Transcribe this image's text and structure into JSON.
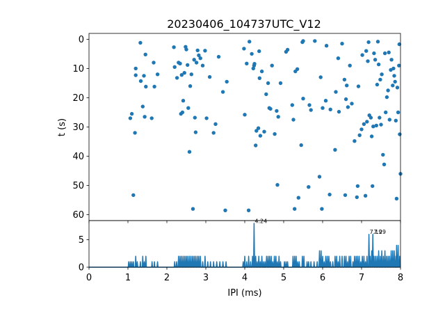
{
  "chart_data": [
    {
      "type": "scatter",
      "title": "20230406_104737UTC_V12",
      "xlabel": "",
      "ylabel": "t (s)",
      "xlim": [
        0,
        8
      ],
      "ylim": [
        62,
        -2
      ],
      "y_inverted": true,
      "y_ticks": [
        0,
        10,
        20,
        30,
        40,
        50,
        60
      ],
      "x_ticks": [
        0,
        1,
        2,
        3,
        4,
        5,
        6,
        7,
        8
      ],
      "x_ticklabels_visible": false,
      "grid": false,
      "color": "#1f77b4",
      "points": [
        [
          1.06,
          27.0
        ],
        [
          1.1,
          25.5
        ],
        [
          1.14,
          53.3
        ],
        [
          1.18,
          32.0
        ],
        [
          1.2,
          10.0
        ],
        [
          1.2,
          12.3
        ],
        [
          1.32,
          1.2
        ],
        [
          1.33,
          14.3
        ],
        [
          1.38,
          23.0
        ],
        [
          1.41,
          12.5
        ],
        [
          1.43,
          26.5
        ],
        [
          1.45,
          5.2
        ],
        [
          1.46,
          16.2
        ],
        [
          1.61,
          27.0
        ],
        [
          1.66,
          8.0
        ],
        [
          1.68,
          16.2
        ],
        [
          1.76,
          12.0
        ],
        [
          2.18,
          2.7
        ],
        [
          2.2,
          9.5
        ],
        [
          2.26,
          13.2
        ],
        [
          2.3,
          8.0
        ],
        [
          2.34,
          8.3
        ],
        [
          2.36,
          25.5
        ],
        [
          2.38,
          12.2
        ],
        [
          2.4,
          25.0
        ],
        [
          2.42,
          21.0
        ],
        [
          2.45,
          11.5
        ],
        [
          2.48,
          2.6
        ],
        [
          2.5,
          3.5
        ],
        [
          2.53,
          8.8
        ],
        [
          2.55,
          23.5
        ],
        [
          2.58,
          38.5
        ],
        [
          2.6,
          16.0
        ],
        [
          2.63,
          12.0
        ],
        [
          2.67,
          58.0
        ],
        [
          2.7,
          7.0
        ],
        [
          2.72,
          26.8
        ],
        [
          2.74,
          31.8
        ],
        [
          2.76,
          8.0
        ],
        [
          2.79,
          3.8
        ],
        [
          2.82,
          5.5
        ],
        [
          2.86,
          6.5
        ],
        [
          2.92,
          9.0
        ],
        [
          2.98,
          3.9
        ],
        [
          3.02,
          27.0
        ],
        [
          3.1,
          12.9
        ],
        [
          3.2,
          32.0
        ],
        [
          3.25,
          29.0
        ],
        [
          3.33,
          6.0
        ],
        [
          3.44,
          18.0
        ],
        [
          3.5,
          58.5
        ],
        [
          3.54,
          14.5
        ],
        [
          3.98,
          3.2
        ],
        [
          4.0,
          25.8
        ],
        [
          4.05,
          8.3
        ],
        [
          4.1,
          58.5
        ],
        [
          4.12,
          0.8
        ],
        [
          4.18,
          5.0
        ],
        [
          4.22,
          10.0
        ],
        [
          4.24,
          9.0
        ],
        [
          4.25,
          8.4
        ],
        [
          4.28,
          36.3
        ],
        [
          4.3,
          31.3
        ],
        [
          4.35,
          30.4
        ],
        [
          4.37,
          4.1
        ],
        [
          4.38,
          13.3
        ],
        [
          4.4,
          33.0
        ],
        [
          4.44,
          11.0
        ],
        [
          4.5,
          31.6
        ],
        [
          4.55,
          18.8
        ],
        [
          4.6,
          15.0
        ],
        [
          4.63,
          23.5
        ],
        [
          4.66,
          23.8
        ],
        [
          4.7,
          9.0
        ],
        [
          4.77,
          32.4
        ],
        [
          4.82,
          24.5
        ],
        [
          4.84,
          49.8
        ],
        [
          4.86,
          26.5
        ],
        [
          4.92,
          15.0
        ],
        [
          5.06,
          4.3
        ],
        [
          5.1,
          3.6
        ],
        [
          5.22,
          22.5
        ],
        [
          5.25,
          27.5
        ],
        [
          5.28,
          58.0
        ],
        [
          5.3,
          11.0
        ],
        [
          5.35,
          10.2
        ],
        [
          5.38,
          54.2
        ],
        [
          5.45,
          36.2
        ],
        [
          5.48,
          1.0
        ],
        [
          5.5,
          0.6
        ],
        [
          5.5,
          20.3
        ],
        [
          5.64,
          50.5
        ],
        [
          5.66,
          22.5
        ],
        [
          5.7,
          24.2
        ],
        [
          5.8,
          0.6
        ],
        [
          5.92,
          47.0
        ],
        [
          5.95,
          13.0
        ],
        [
          5.98,
          58.0
        ],
        [
          6.0,
          23.5
        ],
        [
          6.08,
          21.0
        ],
        [
          6.1,
          2.2
        ],
        [
          6.18,
          53.1
        ],
        [
          6.2,
          24.0
        ],
        [
          6.32,
          37.8
        ],
        [
          6.34,
          18.0
        ],
        [
          6.4,
          6.5
        ],
        [
          6.42,
          24.8
        ],
        [
          6.5,
          1.5
        ],
        [
          6.56,
          13.8
        ],
        [
          6.58,
          53.3
        ],
        [
          6.6,
          20.5
        ],
        [
          6.62,
          15.8
        ],
        [
          6.65,
          23.2
        ],
        [
          6.7,
          9.0
        ],
        [
          6.75,
          22.0
        ],
        [
          6.82,
          34.8
        ],
        [
          6.88,
          54.0
        ],
        [
          6.9,
          50.2
        ],
        [
          6.92,
          16.1
        ],
        [
          6.95,
          32.8
        ],
        [
          7.0,
          30.8
        ],
        [
          7.02,
          5.4
        ],
        [
          7.06,
          29.0
        ],
        [
          7.1,
          53.5
        ],
        [
          7.12,
          4.0
        ],
        [
          7.14,
          28.2
        ],
        [
          7.16,
          7.5
        ],
        [
          7.18,
          1.0
        ],
        [
          7.2,
          26.0
        ],
        [
          7.24,
          26.8
        ],
        [
          7.26,
          33.2
        ],
        [
          7.28,
          50.2
        ],
        [
          7.3,
          29.8
        ],
        [
          7.32,
          4.8
        ],
        [
          7.35,
          7.0
        ],
        [
          7.38,
          29.5
        ],
        [
          7.4,
          15.5
        ],
        [
          7.42,
          0.8
        ],
        [
          7.44,
          8.6
        ],
        [
          7.46,
          26.8
        ],
        [
          7.48,
          13.8
        ],
        [
          7.5,
          29.2
        ],
        [
          7.52,
          12.0
        ],
        [
          7.55,
          39.5
        ],
        [
          7.58,
          42.8
        ],
        [
          7.6,
          4.8
        ],
        [
          7.62,
          25.0
        ],
        [
          7.65,
          19.8
        ],
        [
          7.68,
          17.5
        ],
        [
          7.7,
          4.5
        ],
        [
          7.72,
          27.5
        ],
        [
          7.75,
          10.5
        ],
        [
          7.77,
          7.0
        ],
        [
          7.8,
          15.8
        ],
        [
          7.82,
          10.0
        ],
        [
          7.84,
          12.5
        ],
        [
          7.86,
          14.5
        ],
        [
          7.88,
          27.8
        ],
        [
          7.9,
          54.5
        ],
        [
          7.92,
          16.5
        ],
        [
          7.94,
          25.0
        ],
        [
          7.96,
          9.0
        ],
        [
          7.97,
          1.7
        ],
        [
          7.98,
          32.5
        ],
        [
          8.0,
          46.0
        ]
      ]
    },
    {
      "type": "line",
      "xlabel": "IPI (ms)",
      "ylabel": "",
      "xlim": [
        0,
        8
      ],
      "ylim": [
        0,
        8.5
      ],
      "y_ticks": [
        0,
        5
      ],
      "x_ticks": [
        0,
        1,
        2,
        3,
        4,
        5,
        6,
        7,
        8
      ],
      "grid": false,
      "color": "#1f77b4",
      "spikes": [
        [
          1.02,
          1
        ],
        [
          1.06,
          1
        ],
        [
          1.1,
          1
        ],
        [
          1.14,
          1
        ],
        [
          1.2,
          2
        ],
        [
          1.24,
          1
        ],
        [
          1.32,
          1
        ],
        [
          1.38,
          2
        ],
        [
          1.42,
          1
        ],
        [
          1.46,
          2
        ],
        [
          1.62,
          1
        ],
        [
          1.68,
          1
        ],
        [
          1.76,
          1
        ],
        [
          2.2,
          1
        ],
        [
          2.25,
          1
        ],
        [
          2.3,
          2
        ],
        [
          2.34,
          2
        ],
        [
          2.38,
          2
        ],
        [
          2.42,
          2
        ],
        [
          2.46,
          2
        ],
        [
          2.5,
          2
        ],
        [
          2.54,
          2
        ],
        [
          2.58,
          2
        ],
        [
          2.62,
          2
        ],
        [
          2.66,
          2
        ],
        [
          2.7,
          2
        ],
        [
          2.74,
          2
        ],
        [
          2.78,
          2
        ],
        [
          2.82,
          2
        ],
        [
          2.86,
          2
        ],
        [
          2.92,
          1
        ],
        [
          2.98,
          2
        ],
        [
          3.05,
          1
        ],
        [
          3.12,
          1
        ],
        [
          3.2,
          1
        ],
        [
          3.28,
          1
        ],
        [
          3.36,
          1
        ],
        [
          3.44,
          1
        ],
        [
          3.52,
          1
        ],
        [
          3.96,
          1
        ],
        [
          4.0,
          2
        ],
        [
          4.05,
          1
        ],
        [
          4.1,
          2
        ],
        [
          4.15,
          1
        ],
        [
          4.2,
          2
        ],
        [
          4.24,
          8
        ],
        [
          4.28,
          2
        ],
        [
          4.32,
          1
        ],
        [
          4.36,
          2
        ],
        [
          4.4,
          1
        ],
        [
          4.44,
          2
        ],
        [
          4.48,
          1
        ],
        [
          4.52,
          1
        ],
        [
          4.56,
          2
        ],
        [
          4.6,
          2
        ],
        [
          4.64,
          2
        ],
        [
          4.68,
          2
        ],
        [
          4.72,
          1
        ],
        [
          4.76,
          2
        ],
        [
          4.8,
          2
        ],
        [
          4.84,
          1
        ],
        [
          4.88,
          2
        ],
        [
          4.92,
          1
        ],
        [
          5.02,
          1
        ],
        [
          5.06,
          1
        ],
        [
          5.1,
          1
        ],
        [
          5.24,
          2
        ],
        [
          5.28,
          2
        ],
        [
          5.32,
          2
        ],
        [
          5.36,
          1
        ],
        [
          5.4,
          1
        ],
        [
          5.48,
          2
        ],
        [
          5.52,
          2
        ],
        [
          5.6,
          1
        ],
        [
          5.64,
          1
        ],
        [
          5.7,
          1
        ],
        [
          5.78,
          1
        ],
        [
          5.86,
          1
        ],
        [
          5.92,
          3
        ],
        [
          5.96,
          3
        ],
        [
          6.0,
          2
        ],
        [
          6.04,
          1
        ],
        [
          6.08,
          2
        ],
        [
          6.12,
          2
        ],
        [
          6.16,
          2
        ],
        [
          6.2,
          1
        ],
        [
          6.26,
          1
        ],
        [
          6.32,
          2
        ],
        [
          6.36,
          2
        ],
        [
          6.4,
          1
        ],
        [
          6.44,
          2
        ],
        [
          6.5,
          2
        ],
        [
          6.56,
          2
        ],
        [
          6.6,
          2
        ],
        [
          6.64,
          1
        ],
        [
          6.68,
          2
        ],
        [
          6.72,
          2
        ],
        [
          6.78,
          1
        ],
        [
          6.82,
          2
        ],
        [
          6.86,
          2
        ],
        [
          6.9,
          2
        ],
        [
          6.94,
          2
        ],
        [
          6.98,
          1
        ],
        [
          7.02,
          2
        ],
        [
          7.06,
          2
        ],
        [
          7.1,
          1
        ],
        [
          7.14,
          2
        ],
        [
          7.19,
          6
        ],
        [
          7.22,
          2
        ],
        [
          7.26,
          3
        ],
        [
          7.29,
          6
        ],
        [
          7.32,
          2
        ],
        [
          7.36,
          2
        ],
        [
          7.4,
          2
        ],
        [
          7.44,
          3
        ],
        [
          7.48,
          2
        ],
        [
          7.52,
          3
        ],
        [
          7.56,
          2
        ],
        [
          7.6,
          3
        ],
        [
          7.64,
          2
        ],
        [
          7.68,
          2
        ],
        [
          7.72,
          2
        ],
        [
          7.76,
          3
        ],
        [
          7.8,
          3
        ],
        [
          7.84,
          3
        ],
        [
          7.88,
          2
        ],
        [
          7.9,
          4
        ],
        [
          7.94,
          4
        ],
        [
          7.98,
          2
        ]
      ],
      "annotations": [
        {
          "x": 4.24,
          "y": 8,
          "text": "4.24"
        },
        {
          "x": 7.19,
          "y": 6,
          "text": "7.19"
        },
        {
          "x": 7.29,
          "y": 6,
          "text": "7.29"
        }
      ]
    }
  ]
}
